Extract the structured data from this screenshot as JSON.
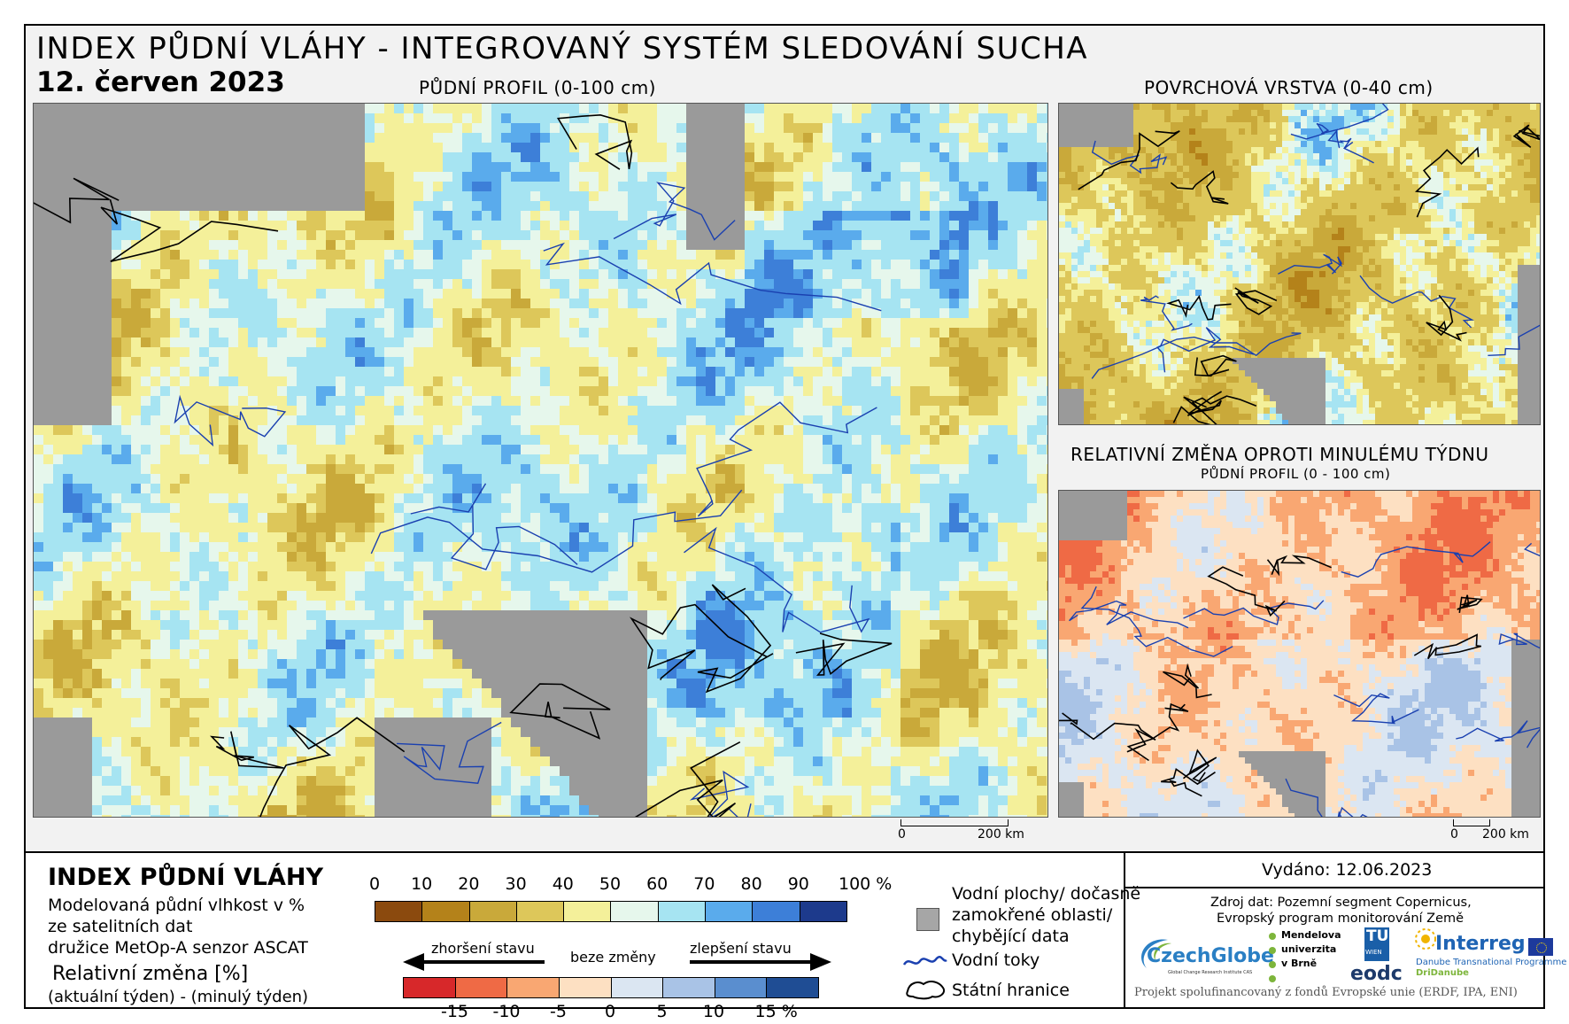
{
  "header": {
    "title": "INDEX PŮDNÍ VLÁHY - INTEGROVANÝ SYSTÉM SLEDOVÁNÍ SUCHA",
    "date": "12. červen 2023"
  },
  "maps": {
    "main_label": "PŮDNÍ PROFIL (0-100 cm)",
    "surface_label": "POVRCHOVÁ VRSTVA (0-40 cm)",
    "change_label": "RELATIVNÍ ZMĚNA OPROTI MINULÉMU TÝDNU",
    "change_sublabel": "PŮDNÍ PROFIL (0 - 100 cm)",
    "scale_main": {
      "zero": "0",
      "end": "200 km"
    },
    "scale_small": {
      "zero": "0",
      "end": "200 km"
    }
  },
  "legend": {
    "title": "INDEX PŮDNÍ VLÁHY",
    "desc1": "Modelovaná půdní vlhkost v %",
    "desc2": "ze satelitních dat",
    "desc3": "družice MetOp-A senzor ASCAT",
    "rel_title": "Relativní změna [%]",
    "rel_desc": "(aktuální týden) - (minulý týden)",
    "moisture_ticks": [
      "0",
      "10",
      "20",
      "30",
      "40",
      "50",
      "60",
      "70",
      "80",
      "90",
      "100 %"
    ],
    "moisture_colors": [
      "#8b4a0e",
      "#b4821a",
      "#c9a93a",
      "#ddc75a",
      "#f4f09a",
      "#e6f7ec",
      "#a6e4f2",
      "#5aabec",
      "#3d7fd8",
      "#1d3a8c"
    ],
    "change_ticks": [
      "-15",
      "-10",
      "-5",
      "0",
      "5",
      "10",
      "15 %"
    ],
    "change_colors": [
      "#d7282a",
      "#ef6a45",
      "#f9a772",
      "#fde0c2",
      "#dbe6f2",
      "#a9c3e6",
      "#5a8ecf",
      "#1f4d94"
    ],
    "worse": "zhoršení stavu",
    "nochange": "beze změny",
    "better": "zlepšení stavu",
    "water_label_1": "Vodní plochy/ dočasně",
    "water_label_2": "zamokřené oblasti/",
    "water_label_3": "chybějící data",
    "rivers_label": "Vodní toky",
    "borders_label": "Státní hranice",
    "issued": "Vydáno: 12.06.2023",
    "source1": "Zdroj dat: Pozemní segment Copernicus,",
    "source2": "Evropský program monitorování Země",
    "footer": "Projekt spolufinancovaný z fondů Evropské unie (ERDF, IPA, ENI)"
  },
  "logos": {
    "czechglobe": "CzechGlobe",
    "czechglobe_sub": "Global Change Research Institute CAS",
    "mendel1": "Mendelova",
    "mendel2": "univerzita",
    "mendel3": "v Brně",
    "tu1": "TU",
    "tu2": "WIEN",
    "eodc": "eodc",
    "interreg": "Interreg",
    "interreg_sub1": "Danube Transnational Programme",
    "interreg_sub2": "DriDanube"
  }
}
